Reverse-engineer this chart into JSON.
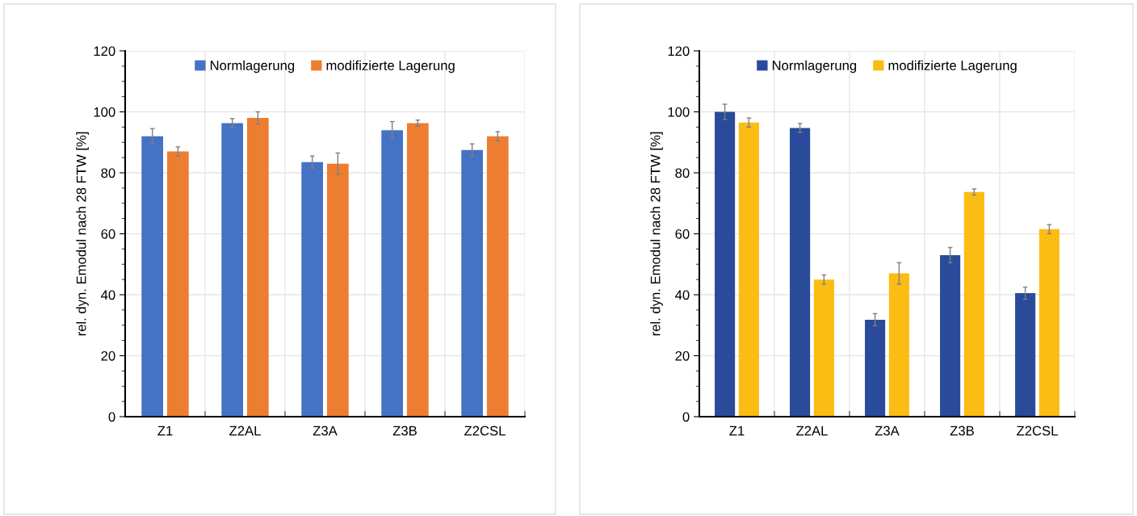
{
  "chart_data": [
    {
      "type": "bar",
      "ylabel": "rel. dyn. Emodul nach 28 FTW [%]",
      "categories": [
        "Z1",
        "Z2AL",
        "Z3A",
        "Z3B",
        "Z2CSL"
      ],
      "ylim": [
        0,
        120
      ],
      "yticks": [
        0,
        20,
        40,
        60,
        80,
        100,
        120
      ],
      "grid": true,
      "legend": "top",
      "series": [
        {
          "name": "Normlagerung",
          "color": "#4472c4",
          "values": [
            92,
            96.3,
            83.5,
            94,
            87.5
          ],
          "errors": [
            2.5,
            1.5,
            2,
            2.8,
            2
          ]
        },
        {
          "name": "modifizierte Lagerung",
          "color": "#ed7d31",
          "values": [
            87,
            98,
            83,
            96.3,
            92
          ],
          "errors": [
            1.5,
            2,
            3.5,
            1,
            1.5
          ]
        }
      ]
    },
    {
      "type": "bar",
      "ylabel": "rel. dyn. Emodul nach 28 FTW [%]",
      "categories": [
        "Z1",
        "Z2AL",
        "Z3A",
        "Z3B",
        "Z2CSL"
      ],
      "ylim": [
        0,
        120
      ],
      "yticks": [
        0,
        20,
        40,
        60,
        80,
        100,
        120
      ],
      "grid": true,
      "legend": "top",
      "series": [
        {
          "name": "Normlagerung",
          "color": "#2a4a9a",
          "values": [
            100,
            94.7,
            31.8,
            53,
            40.5
          ],
          "errors": [
            2.5,
            1.5,
            2,
            2.5,
            2
          ]
        },
        {
          "name": "modifizierte Lagerung",
          "color": "#fbbc13",
          "values": [
            96.5,
            45,
            47,
            73.7,
            61.5
          ],
          "errors": [
            1.5,
            1.5,
            3.5,
            1,
            1.5
          ]
        }
      ]
    }
  ]
}
